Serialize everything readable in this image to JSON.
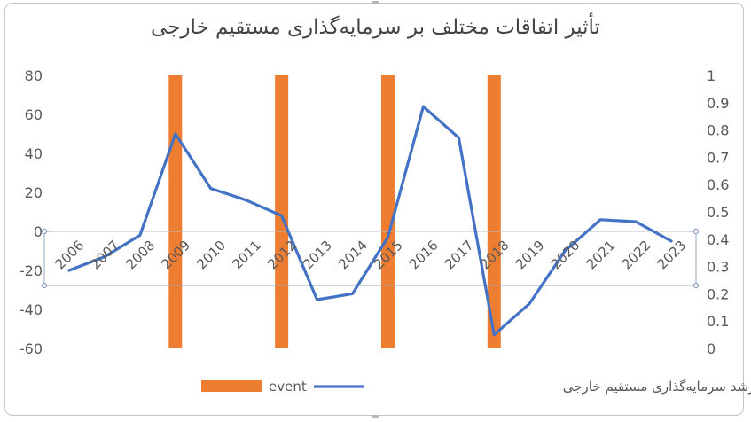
{
  "chart_data": {
    "type": "bar+line",
    "title": "تأثیر اتفاقات مختلف بر سرمایه‌گذاری مستقیم خارجی",
    "categories": [
      "2006",
      "2007",
      "2008",
      "2009",
      "2010",
      "2011",
      "2012",
      "2013",
      "2014",
      "2015",
      "2016",
      "2017",
      "2018",
      "2019",
      "2020",
      "2021",
      "2022",
      "2023"
    ],
    "primary_axis": {
      "ylim": [
        -60,
        80
      ],
      "ticks": [
        "80",
        "60",
        "40",
        "20",
        "0",
        "-20",
        "-40",
        "-60"
      ]
    },
    "secondary_axis": {
      "ylim": [
        0,
        1
      ],
      "ticks": [
        "1",
        "0.9",
        "0.8",
        "0.7",
        "0.6",
        "0.5",
        "0.4",
        "0.3",
        "0.2",
        "0.1",
        "0"
      ]
    },
    "series": [
      {
        "name": "event",
        "kind": "bar",
        "axis": "secondary",
        "color": "#ED7D31",
        "values": [
          0,
          0,
          0,
          1,
          0,
          0,
          1,
          0,
          0,
          1,
          0,
          0,
          1,
          0,
          0,
          0,
          0,
          0
        ]
      },
      {
        "name": "رشد سرمایه‌گذاری مستقیم خارجی",
        "kind": "line",
        "axis": "primary",
        "color": "#4472C4",
        "values": [
          -20,
          -13,
          -2,
          50,
          22,
          16,
          8,
          -35,
          -32,
          -3,
          64,
          48,
          -53,
          -37,
          -10,
          6,
          5,
          -5
        ]
      }
    ],
    "grid": false,
    "legend": "bottom"
  }
}
